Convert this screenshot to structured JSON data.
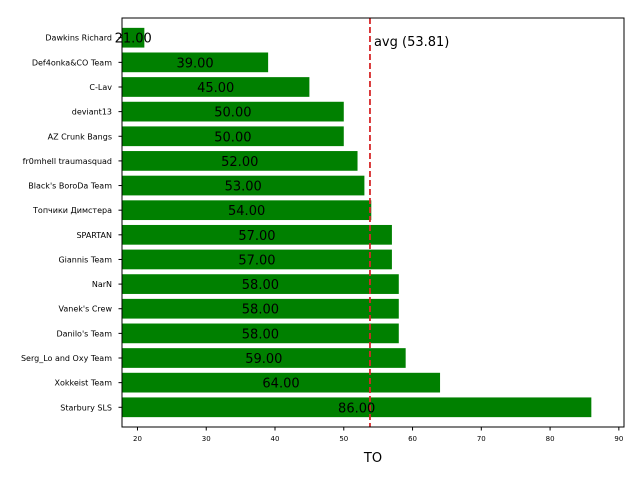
{
  "chart_data": {
    "type": "bar",
    "orientation": "horizontal",
    "categories": [
      "Starbury SLS",
      "Xokkeist Team",
      "Serg_Lo and Oxy Team",
      "Danilo's Team",
      "Vanek's Crew",
      "NarN",
      "Giannis Team",
      "SPARTAN",
      "Топчики Димстера",
      "Black's BoroDa Team",
      "fr0mhell traumasquad",
      "AZ Crunk Bangs",
      "deviant13",
      "C-Lav",
      "Def4onka&CO Team",
      "Dawkins Richard"
    ],
    "values": [
      86,
      64,
      59,
      58,
      58,
      58,
      57,
      57,
      54,
      53,
      52,
      50,
      50,
      45,
      39,
      21
    ],
    "data_labels": [
      "86.00",
      "64.00",
      "59.00",
      "58.00",
      "58.00",
      "58.00",
      "57.00",
      "57.00",
      "54.00",
      "53.00",
      "52.00",
      "50.00",
      "50.00",
      "45.00",
      "39.00",
      "21.00"
    ],
    "xlabel": "TO",
    "ylabel": "",
    "title": "",
    "xlim": [
      17.75,
      90.75
    ],
    "xticks": [
      20,
      30,
      40,
      50,
      60,
      70,
      80,
      90
    ],
    "bar_color": "#008000",
    "reference_line": {
      "value": 53.81,
      "label": "avg (53.81)",
      "color": "#d62728",
      "style": "dashed"
    },
    "grid": false,
    "legend": "none"
  }
}
